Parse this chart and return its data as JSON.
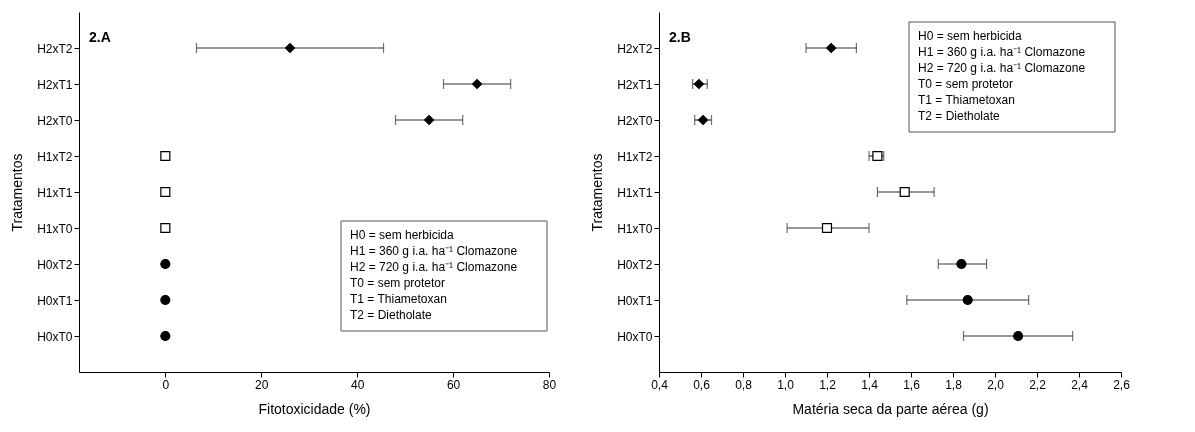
{
  "chart_data": [
    {
      "type": "scatter",
      "orientation": "horizontal",
      "ylabel": "Tratamentos",
      "xlabel": "Fitotoxicidade (%)",
      "categories": [
        "H2xT2",
        "H2xT1",
        "H2xT0",
        "H1xT2",
        "H1xT1",
        "H1xT0",
        "H0xT2",
        "H0xT1",
        "H0xT0"
      ],
      "xlim": [
        -18,
        80
      ],
      "xticks": [
        0,
        20,
        40,
        60,
        80
      ],
      "grid": false,
      "series": [
        {
          "color": "#000000",
          "marker": "diamond",
          "values": [
            26,
            65,
            55,
            null,
            null,
            null,
            null,
            null,
            null
          ],
          "errors": [
            [
              6.5,
              45.5
            ],
            [
              58,
              72
            ],
            [
              48,
              62
            ],
            null,
            null,
            null,
            null,
            null,
            null
          ]
        },
        {
          "color": "#ffffff",
          "marker": "square",
          "values": [
            null,
            null,
            null,
            0,
            0,
            0,
            null,
            null,
            null
          ]
        },
        {
          "color": "#000000",
          "marker": "circle",
          "values": [
            null,
            null,
            null,
            null,
            null,
            null,
            0,
            0,
            0
          ]
        }
      ],
      "annotations": [
        "2.A",
        "H0 = sem herbicida",
        "H1 = 360 g i.a. ha⁻¹ Clomazone",
        "H2 = 720 g i.a. ha⁻¹ Clomazone",
        "T0 = sem protetor",
        "T1 = Thiametoxan",
        "T2 = Dietholate"
      ]
    },
    {
      "type": "scatter",
      "orientation": "horizontal",
      "ylabel": "Tratamentos",
      "xlabel": "Matéria seca da parte aérea (g)",
      "categories": [
        "H2xT2",
        "H2xT1",
        "H2xT0",
        "H1xT2",
        "H1xT1",
        "H1xT0",
        "H0xT2",
        "H0xT1",
        "H0xT0"
      ],
      "xlim": [
        0.4,
        2.6
      ],
      "xticks": [
        {
          "value": 0.4,
          "label": "0,4"
        },
        {
          "value": 0.6,
          "label": "0,6"
        },
        {
          "value": 0.8,
          "label": "0,8"
        },
        {
          "value": 1.0,
          "label": "1,0"
        },
        {
          "value": 1.2,
          "label": "1,2"
        },
        {
          "value": 1.4,
          "label": "1,4"
        },
        {
          "value": 1.6,
          "label": "1,6"
        },
        {
          "value": 1.8,
          "label": "1,8"
        },
        {
          "value": 2.0,
          "label": "2,0"
        },
        {
          "value": 2.2,
          "label": "2,2"
        },
        {
          "value": 2.4,
          "label": "2,4"
        },
        {
          "value": 2.6,
          "label": "2,6"
        }
      ],
      "grid": false,
      "series": [
        {
          "color": "#000000",
          "marker": "diamond",
          "values": [
            1.22,
            0.59,
            0.61,
            null,
            null,
            null,
            null,
            null,
            null
          ],
          "errors": [
            [
              1.1,
              1.34
            ],
            [
              0.56,
              0.63
            ],
            [
              0.57,
              0.65
            ],
            null,
            null,
            null,
            null,
            null,
            null
          ]
        },
        {
          "color": "#ffffff",
          "marker": "square",
          "values": [
            null,
            null,
            null,
            1.44,
            1.57,
            1.2,
            null,
            null,
            null
          ],
          "errors": [
            null,
            null,
            null,
            [
              1.4,
              1.47
            ],
            [
              1.44,
              1.71
            ],
            [
              1.01,
              1.4
            ],
            null,
            null,
            null
          ]
        },
        {
          "color": "#000000",
          "marker": "circle",
          "values": [
            null,
            null,
            null,
            null,
            null,
            null,
            1.84,
            1.87,
            2.11
          ],
          "errors": [
            null,
            null,
            null,
            null,
            null,
            null,
            [
              1.73,
              1.96
            ],
            [
              1.58,
              2.16
            ],
            [
              1.85,
              2.37
            ]
          ]
        }
      ],
      "annotations": [
        "2.B",
        "H0 = sem herbicida",
        "H1 = 360 g i.a. ha⁻¹ Clomazone",
        "H2 = 720 g i.a. ha⁻¹ Clomazone",
        "T0 = sem protetor",
        "T1 = Thiametoxan",
        "T2 = Dietholate"
      ]
    }
  ]
}
